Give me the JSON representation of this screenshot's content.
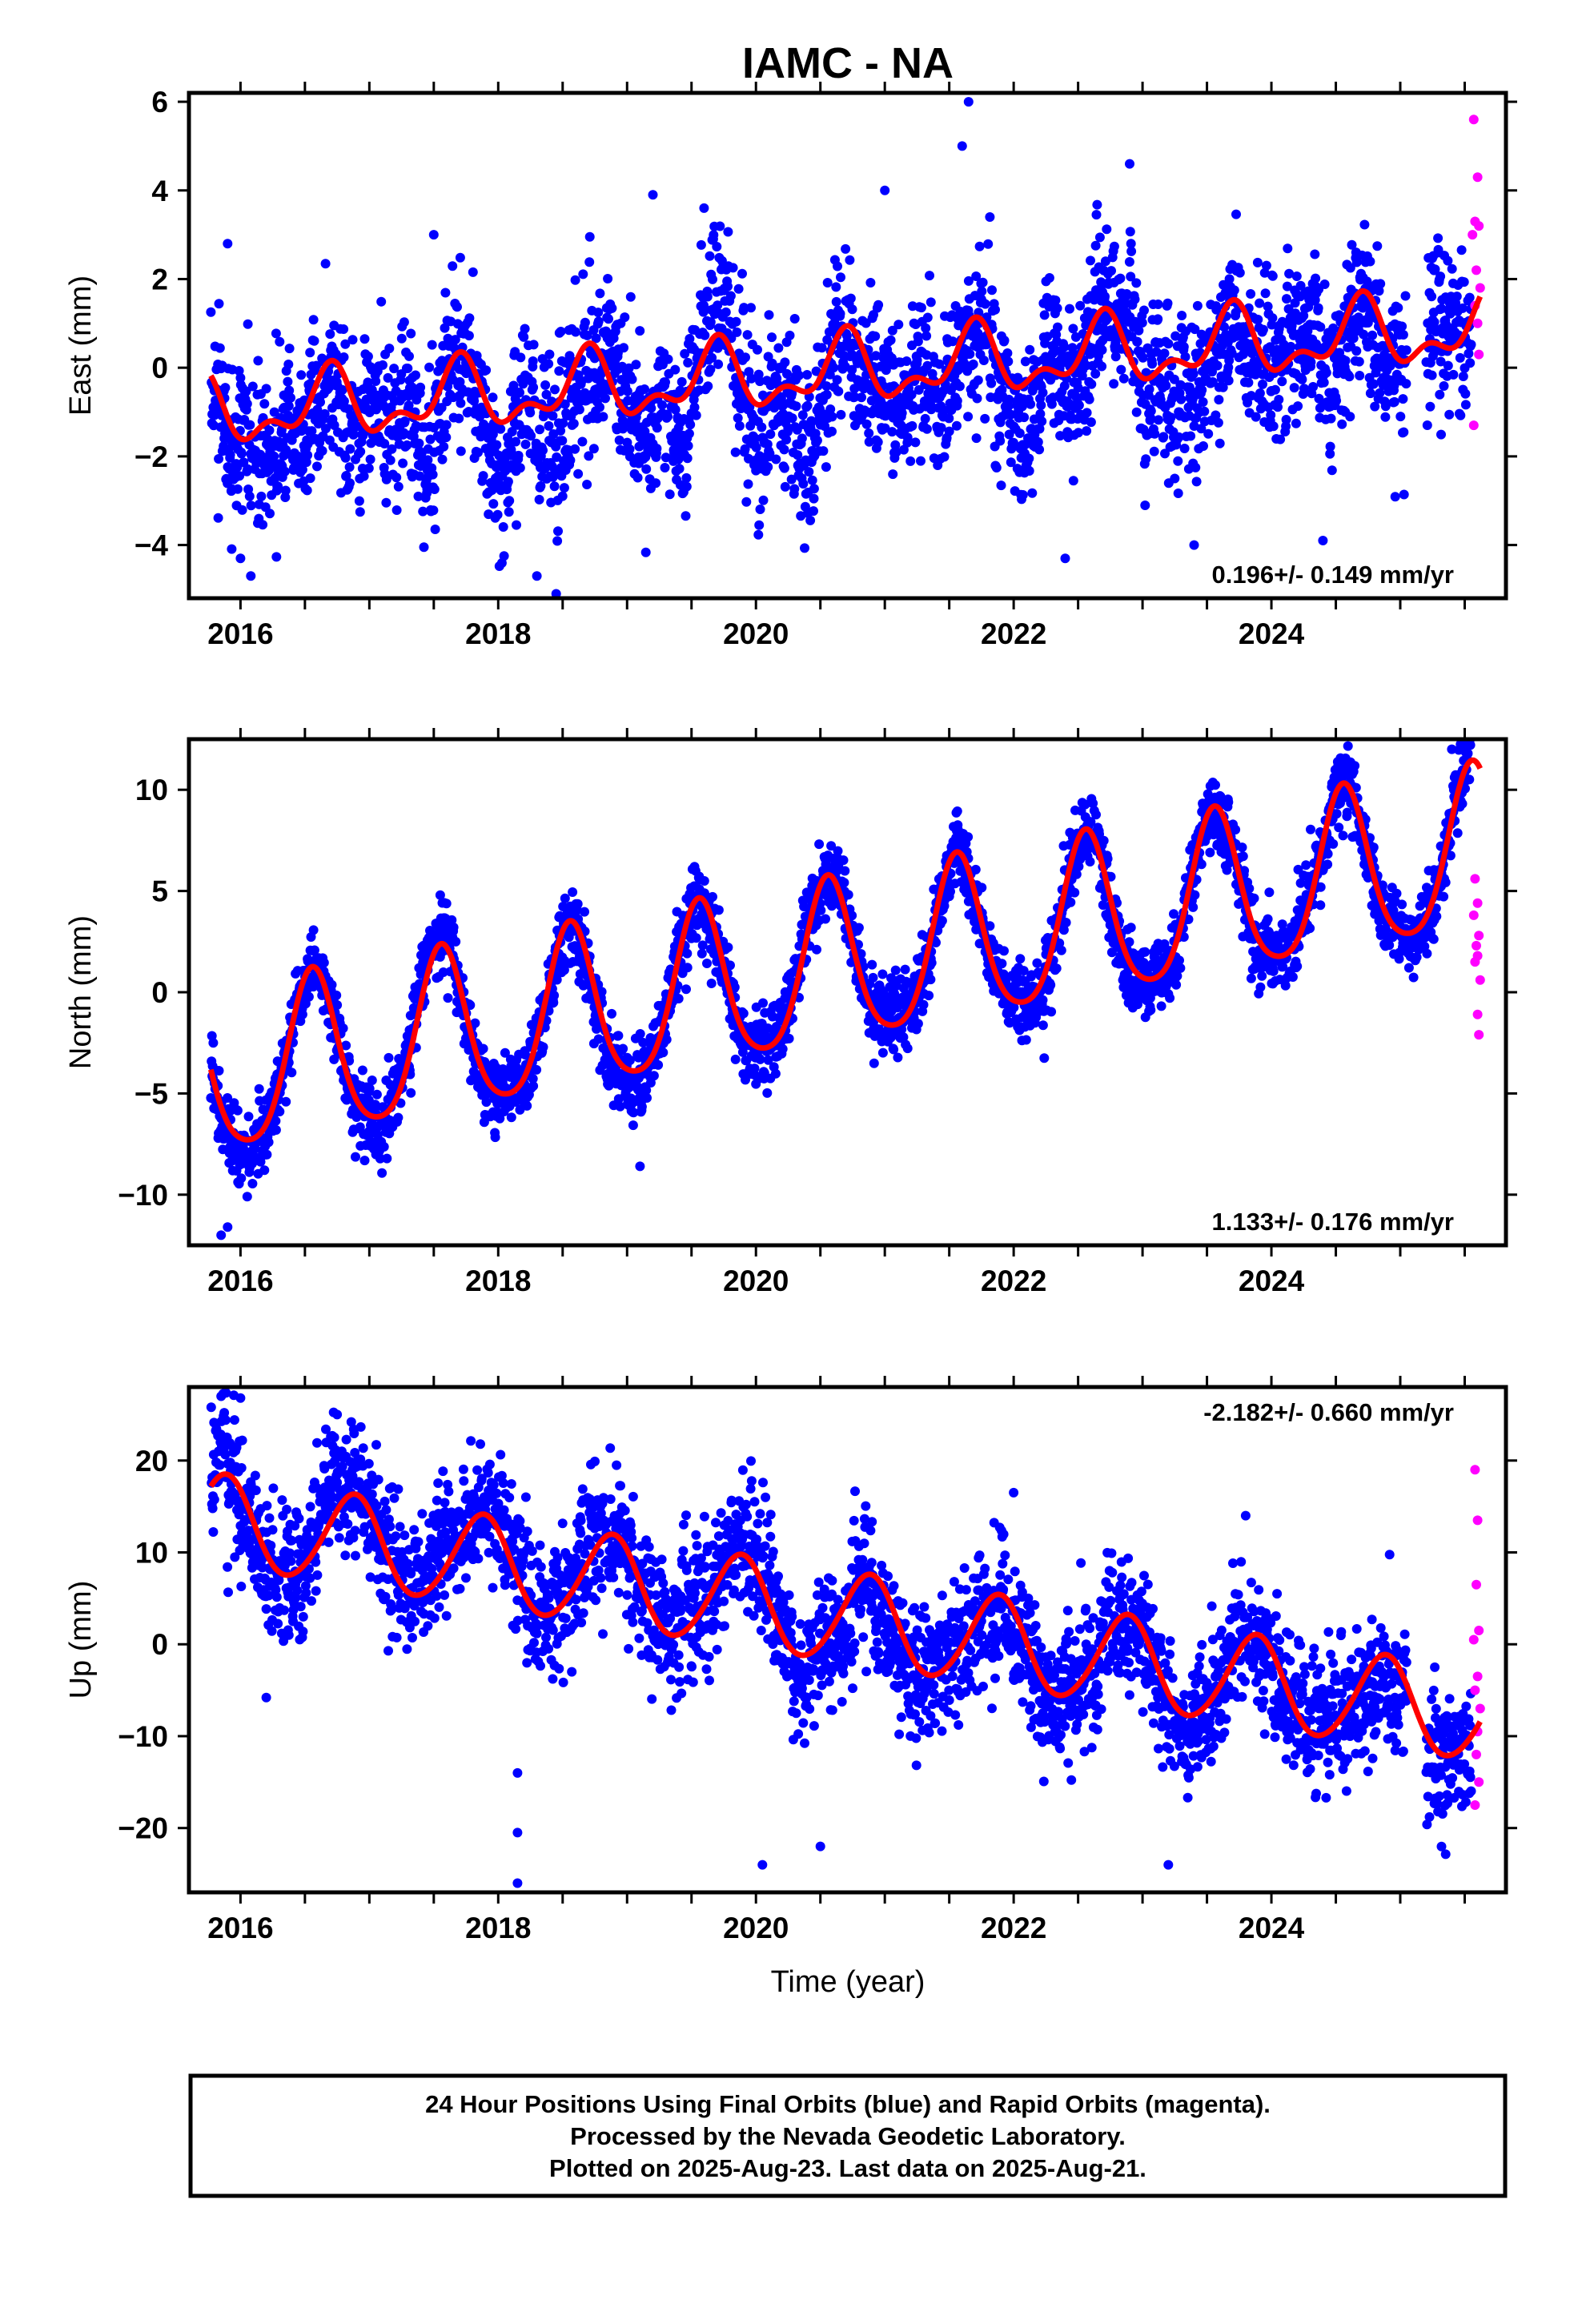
{
  "title": "IAMC - NA",
  "x_axis_label": "Time (year)",
  "colors": {
    "final": "#0000ff",
    "rapid": "#ff00ff",
    "fit": "#ff0000"
  },
  "footer": {
    "line1": "24 Hour Positions Using Final Orbits (blue) and Rapid Orbits (magenta).",
    "line2": "Processed by the Nevada Geodetic Laboratory.",
    "line3": "Plotted on 2025-Aug-23. Last data on 2025-Aug-21."
  },
  "chart_data": [
    {
      "type": "scatter",
      "component": "east",
      "ylabel": "East (mm)",
      "xlim": [
        2015.6,
        2025.82
      ],
      "ylim": [
        -5.2,
        6.2
      ],
      "xticks": [
        2016,
        2018,
        2020,
        2022,
        2024
      ],
      "yticks": [
        -4,
        -2,
        0,
        2,
        4,
        6
      ],
      "ytick_labels": [
        "−4",
        "−2",
        "0",
        "2",
        "4",
        "6"
      ],
      "rate_text": "0.196+/- 0.149 mm/yr",
      "rate_position": "bottom-right",
      "data_start": 2015.77,
      "data_end": 2025.55,
      "gaps": [
        [
          2025.05,
          2025.2
        ]
      ],
      "rate_mm_yr": 0.196,
      "intercept_mm": -1.0,
      "annual_cos": -0.25,
      "annual_sin": -0.6,
      "semiannual_cos": -0.35,
      "semiannual_sin": 0.15,
      "wander": 0.6,
      "noise_sd": 0.85,
      "points": [
        {
          "x": 2016.08,
          "y": -4.7
        },
        {
          "x": 2016.0,
          "y": -4.3
        },
        {
          "x": 2018.3,
          "y": -4.7
        },
        {
          "x": 2018.45,
          "y": -5.1
        },
        {
          "x": 2021.65,
          "y": 6.0
        },
        {
          "x": 2021.6,
          "y": 5.0
        },
        {
          "x": 2021.0,
          "y": 4.0
        },
        {
          "x": 2022.9,
          "y": 4.6
        },
        {
          "x": 2019.2,
          "y": 3.9
        },
        {
          "x": 2022.4,
          "y": -4.3
        },
        {
          "x": 2024.4,
          "y": -3.9
        },
        {
          "x": 2023.4,
          "y": -4.0
        },
        {
          "x": 2017.5,
          "y": 3.0
        },
        {
          "x": 2015.9,
          "y": 2.8
        }
      ],
      "rapid": [
        {
          "x": 2025.57,
          "y": 5.6
        },
        {
          "x": 2025.6,
          "y": 4.3
        },
        {
          "x": 2025.58,
          "y": 3.3
        },
        {
          "x": 2025.61,
          "y": 3.2
        },
        {
          "x": 2025.56,
          "y": 3.0
        },
        {
          "x": 2025.59,
          "y": 2.2
        },
        {
          "x": 2025.62,
          "y": 1.8
        },
        {
          "x": 2025.58,
          "y": 1.4
        },
        {
          "x": 2025.6,
          "y": 1.0
        },
        {
          "x": 2025.61,
          "y": 0.3
        },
        {
          "x": 2025.57,
          "y": -1.3
        }
      ]
    },
    {
      "type": "scatter",
      "component": "north",
      "ylabel": "North (mm)",
      "xlim": [
        2015.6,
        2025.82
      ],
      "ylim": [
        -12.5,
        12.5
      ],
      "xticks": [
        2016,
        2018,
        2020,
        2022,
        2024
      ],
      "yticks": [
        -10,
        -5,
        0,
        5,
        10
      ],
      "ytick_labels": [
        "−10",
        "−5",
        "0",
        "5",
        "10"
      ],
      "rate_text": "1.133+/- 0.176 mm/yr",
      "rate_position": "bottom-right",
      "data_start": 2015.77,
      "data_end": 2025.55,
      "gaps": [],
      "rate_mm_yr": 1.133,
      "intercept_mm": -4.0,
      "annual_cos": -3.7,
      "annual_sin": -1.5,
      "semiannual_cos": 0.5,
      "semiannual_sin": 0.4,
      "wander": 0.4,
      "noise_sd": 0.9,
      "points": [
        {
          "x": 2015.85,
          "y": -12.0
        },
        {
          "x": 2015.9,
          "y": -11.6
        },
        {
          "x": 2019.1,
          "y": -8.6
        },
        {
          "x": 2025.4,
          "y": 12.0
        },
        {
          "x": 2024.5,
          "y": 11.0
        },
        {
          "x": 2019.6,
          "y": 5.5
        },
        {
          "x": 2021.5,
          "y": 5.8
        },
        {
          "x": 2017.55,
          "y": 4.8
        }
      ],
      "rapid": [
        {
          "x": 2025.58,
          "y": 5.6
        },
        {
          "x": 2025.6,
          "y": 4.4
        },
        {
          "x": 2025.57,
          "y": 3.8
        },
        {
          "x": 2025.61,
          "y": 2.8
        },
        {
          "x": 2025.59,
          "y": 2.3
        },
        {
          "x": 2025.6,
          "y": 1.8
        },
        {
          "x": 2025.58,
          "y": 1.5
        },
        {
          "x": 2025.62,
          "y": 0.6
        },
        {
          "x": 2025.6,
          "y": -1.1
        },
        {
          "x": 2025.61,
          "y": -2.1
        }
      ]
    },
    {
      "type": "scatter",
      "component": "up",
      "ylabel": "Up (mm)",
      "xlim": [
        2015.6,
        2025.82
      ],
      "ylim": [
        -27,
        28
      ],
      "xticks": [
        2016,
        2018,
        2020,
        2022,
        2024
      ],
      "yticks": [
        -20,
        -10,
        0,
        10,
        20
      ],
      "ytick_labels": [
        "−20",
        "−10",
        "0",
        "10",
        "20"
      ],
      "rate_text": "-2.182+/- 0.660 mm/yr",
      "rate_position": "top-right",
      "data_start": 2015.77,
      "data_end": 2025.55,
      "gaps": [
        [
          2025.05,
          2025.2
        ]
      ],
      "rate_mm_yr": -2.182,
      "intercept_mm": 13.0,
      "annual_cos": 3.5,
      "annual_sin": -3.5,
      "semiannual_cos": 0.3,
      "semiannual_sin": -0.3,
      "wander": 1.5,
      "noise_sd": 3.6,
      "points": [
        {
          "x": 2015.85,
          "y": 27.0
        },
        {
          "x": 2016.0,
          "y": 26.8
        },
        {
          "x": 2016.75,
          "y": 25.0
        },
        {
          "x": 2018.15,
          "y": -26.0
        },
        {
          "x": 2018.15,
          "y": -20.5
        },
        {
          "x": 2018.15,
          "y": -14.0
        },
        {
          "x": 2020.05,
          "y": -24.0
        },
        {
          "x": 2023.2,
          "y": -24.0
        },
        {
          "x": 2022.0,
          "y": 16.5
        },
        {
          "x": 2020.5,
          "y": -22.0
        },
        {
          "x": 2023.8,
          "y": 14.0
        },
        {
          "x": 2016.2,
          "y": -5.8
        },
        {
          "x": 2018.75,
          "y": 19.9
        }
      ],
      "rapid": [
        {
          "x": 2025.58,
          "y": 19.0
        },
        {
          "x": 2025.6,
          "y": 13.5
        },
        {
          "x": 2025.59,
          "y": 6.5
        },
        {
          "x": 2025.61,
          "y": 1.5
        },
        {
          "x": 2025.57,
          "y": 0.5
        },
        {
          "x": 2025.6,
          "y": -3.5
        },
        {
          "x": 2025.58,
          "y": -5.0
        },
        {
          "x": 2025.62,
          "y": -7.0
        },
        {
          "x": 2025.6,
          "y": -9.5
        },
        {
          "x": 2025.59,
          "y": -12.0
        },
        {
          "x": 2025.61,
          "y": -15.0
        },
        {
          "x": 2025.58,
          "y": -17.5
        }
      ]
    }
  ]
}
